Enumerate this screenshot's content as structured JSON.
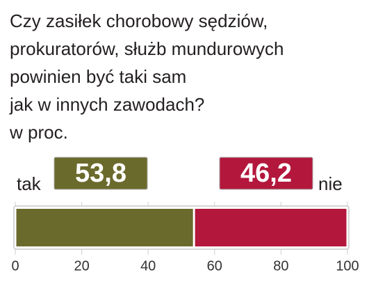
{
  "chart_data": {
    "type": "bar",
    "stacked": true,
    "orientation": "horizontal",
    "title": [
      "Czy zasiłek chorobowy sędziów,",
      "prokuratorów, służb mundurowych",
      "powinien być taki sam",
      "jak w innych zawodach?"
    ],
    "subtitle": "w proc.",
    "categories": [
      null
    ],
    "series": [
      {
        "name": "tak",
        "color": "#6b6a2d",
        "values": [
          53.8
        ],
        "value_labels": [
          "53,8"
        ]
      },
      {
        "name": "nie",
        "color": "#b3173c",
        "values": [
          46.2
        ],
        "value_labels": [
          "46,2"
        ]
      }
    ],
    "xlim": [
      0,
      100
    ],
    "xticks": [
      0,
      20,
      40,
      60,
      80,
      100
    ],
    "grid": true
  }
}
